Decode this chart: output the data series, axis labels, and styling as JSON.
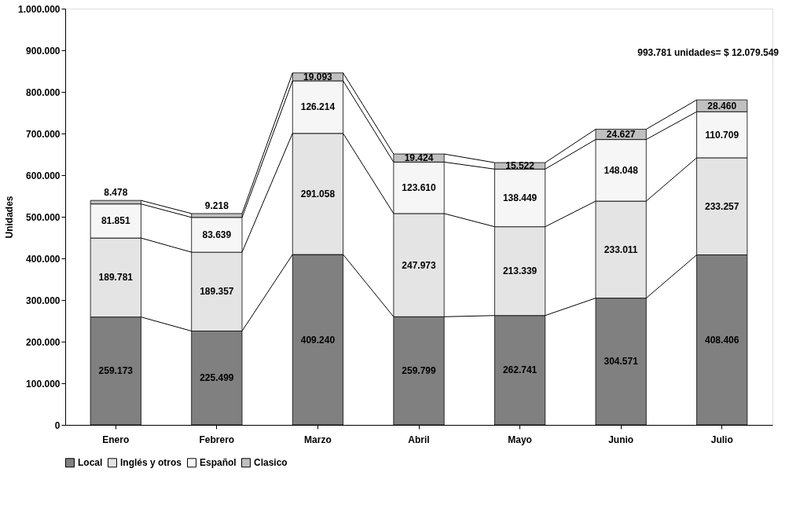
{
  "chart_data": {
    "type": "bar",
    "stacked": true,
    "ylabel": "Unidades",
    "categories": [
      "Enero",
      "Febrero",
      "Marzo",
      "Abril",
      "Mayo",
      "Junio",
      "Julio"
    ],
    "series": [
      {
        "name": "Local",
        "color": "#808080",
        "values": [
          259173,
          225499,
          409240,
          259799,
          262741,
          304571,
          408406
        ],
        "value_labels": [
          "259.173",
          "225.499",
          "409.240",
          "259.799",
          "262.741",
          "304.571",
          "408.406"
        ]
      },
      {
        "name": "Inglés y otros",
        "color": "#e4e4e4",
        "values": [
          189781,
          189357,
          291058,
          247973,
          213339,
          233011,
          233257
        ],
        "value_labels": [
          "189.781",
          "189.357",
          "291.058",
          "247.973",
          "213.339",
          "233.011",
          "233.257"
        ]
      },
      {
        "name": "Español",
        "color": "#f6f6f6",
        "values": [
          81851,
          83639,
          126214,
          123610,
          138449,
          148048,
          110709
        ],
        "value_labels": [
          "81.851",
          "83.639",
          "126.214",
          "123.610",
          "138.449",
          "148.048",
          "110.709"
        ]
      },
      {
        "name": "Clasico",
        "color": "#c0c0c0",
        "values": [
          8478,
          9218,
          19093,
          19424,
          15522,
          24627,
          28460
        ],
        "value_labels": [
          "8.478",
          "9.218",
          "19.093",
          "19.424",
          "15.522",
          "24.627",
          "28.460"
        ]
      }
    ],
    "ylim": [
      0,
      1000000
    ],
    "yticks": [
      {
        "value": 0,
        "label": "0"
      },
      {
        "value": 100000,
        "label": "100.000"
      },
      {
        "value": 200000,
        "label": "200.000"
      },
      {
        "value": 300000,
        "label": "300.000"
      },
      {
        "value": 400000,
        "label": "400.000"
      },
      {
        "value": 500000,
        "label": "500.000"
      },
      {
        "value": 600000,
        "label": "600.000"
      },
      {
        "value": 700000,
        "label": "700.000"
      },
      {
        "value": 800000,
        "label": "800.000"
      },
      {
        "value": 900000,
        "label": "900.000"
      },
      {
        "value": 1000000,
        "label": "1.000.000"
      }
    ],
    "annotations": [
      "993.781 unidades= $ 12.079.549"
    ],
    "grid": false,
    "legend": "bottom"
  }
}
